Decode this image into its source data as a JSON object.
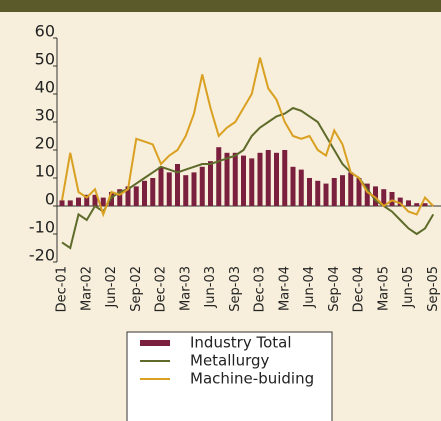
{
  "chart_data": {
    "type": "bar_line",
    "categories": [
      "Dec-01",
      null,
      null,
      "Mar-02",
      null,
      null,
      "Jun-02",
      null,
      null,
      "Sep-02",
      null,
      null,
      "Dec-02",
      null,
      null,
      "Mar-03",
      null,
      null,
      "Jun-03",
      null,
      null,
      "Sep-03",
      null,
      null,
      "Dec-03",
      null,
      null,
      "Mar-04",
      null,
      null,
      "Jun-04",
      null,
      null,
      "Sep-04",
      null,
      null,
      "Dec-04",
      null,
      null,
      "Mar-05",
      null,
      null,
      "Jun-05",
      null,
      null,
      "Sep-05"
    ],
    "series": [
      {
        "name": "Industry Total",
        "type": "bar",
        "color": "#7a1f3d",
        "values": [
          2,
          2,
          3,
          4,
          4,
          3,
          5,
          6,
          7,
          7,
          9,
          10,
          14,
          12,
          15,
          11,
          12,
          14,
          16,
          21,
          19,
          19,
          18,
          17,
          19,
          20,
          19,
          20,
          14,
          13,
          10,
          9,
          8,
          10,
          11,
          12,
          10,
          8,
          7,
          6,
          5,
          3,
          2,
          1,
          1,
          0
        ]
      },
      {
        "name": "Metallurgy",
        "type": "line",
        "color": "#5e6b2a",
        "values": [
          -13,
          -15,
          -3,
          -5,
          0,
          -2,
          3,
          5,
          6,
          8,
          10,
          12,
          14,
          13,
          12,
          13,
          14,
          15,
          15,
          16,
          17,
          18,
          20,
          25,
          28,
          30,
          32,
          33,
          35,
          34,
          32,
          30,
          25,
          20,
          15,
          12,
          10,
          6,
          2,
          0,
          -2,
          -5,
          -8,
          -10,
          -8,
          -3
        ]
      },
      {
        "name": "Machine-buiding",
        "type": "line",
        "color": "#d9a021",
        "values": [
          2,
          19,
          5,
          3,
          6,
          -3,
          5,
          4,
          6,
          24,
          23,
          22,
          15,
          18,
          20,
          25,
          33,
          47,
          35,
          25,
          28,
          30,
          35,
          40,
          53,
          42,
          38,
          30,
          25,
          24,
          25,
          20,
          18,
          27,
          22,
          12,
          10,
          5,
          3,
          0,
          2,
          1,
          -2,
          -3,
          3,
          0
        ]
      }
    ],
    "ylim": [
      -20,
      60
    ],
    "yticks": [
      -20,
      -10,
      0,
      10,
      20,
      30,
      40,
      50,
      60
    ],
    "grid": false
  }
}
